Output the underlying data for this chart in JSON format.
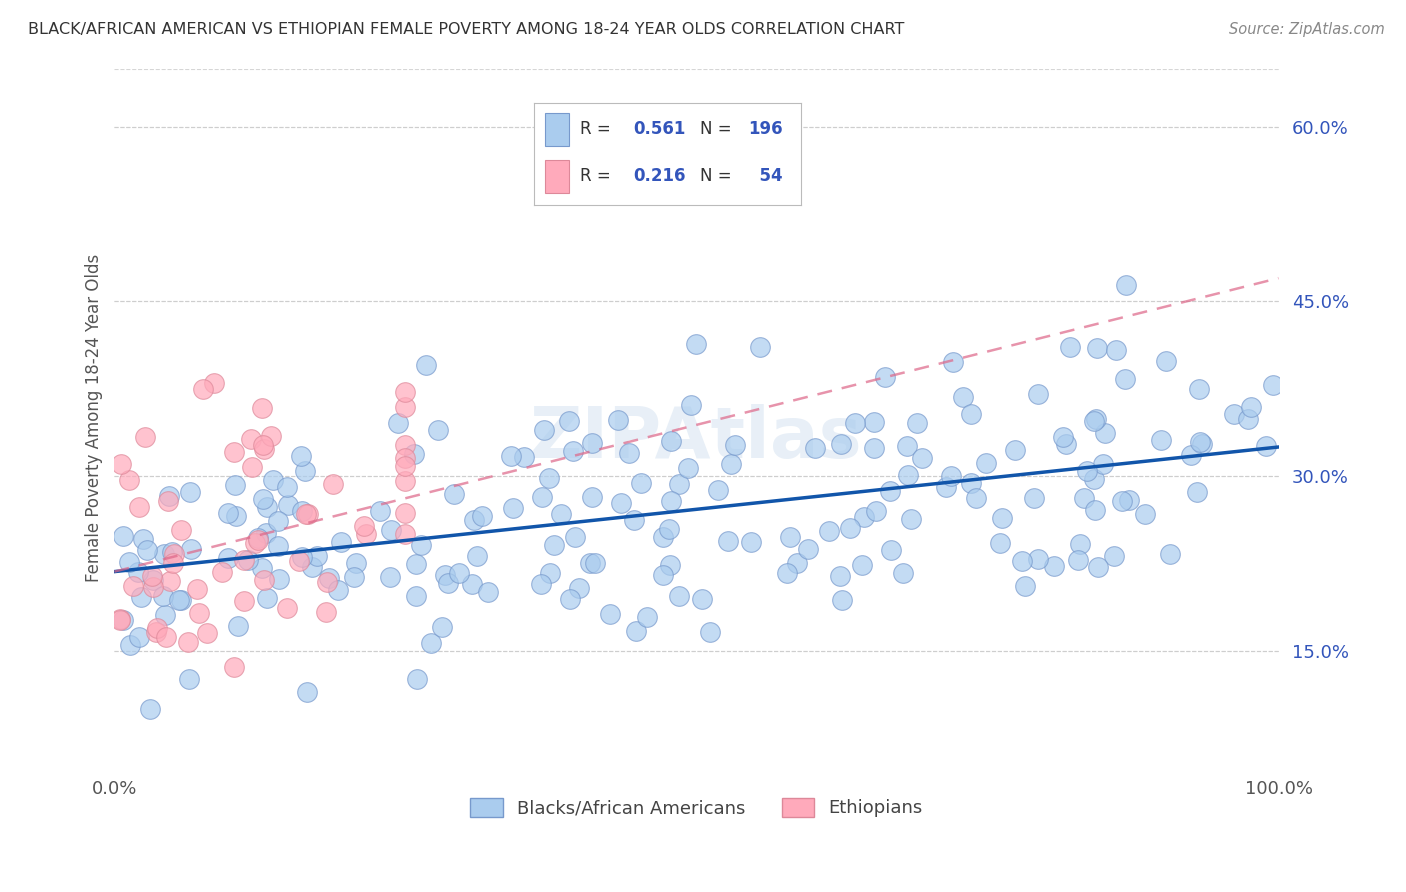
{
  "title": "BLACK/AFRICAN AMERICAN VS ETHIOPIAN FEMALE POVERTY AMONG 18-24 YEAR OLDS CORRELATION CHART",
  "source": "Source: ZipAtlas.com",
  "ylabel": "Female Poverty Among 18-24 Year Olds",
  "xlim": [
    0.0,
    1.0
  ],
  "ylim": [
    0.05,
    0.65
  ],
  "yticks": [
    0.15,
    0.3,
    0.45,
    0.6
  ],
  "ytick_labels": [
    "15.0%",
    "30.0%",
    "45.0%",
    "60.0%"
  ],
  "xtick_labels": [
    "0.0%",
    "",
    "",
    "",
    "100.0%"
  ],
  "blue_color": "#aaccee",
  "blue_edge": "#7799cc",
  "pink_color": "#ffaabb",
  "pink_edge": "#dd8899",
  "blue_line_color": "#1155aa",
  "pink_line_color": "#dd6688",
  "background_color": "#ffffff",
  "grid_color": "#cccccc",
  "title_color": "#333333",
  "ytick_color": "#3355bb",
  "blue_trend_x": [
    0.0,
    1.0
  ],
  "blue_trend_y": [
    0.218,
    0.325
  ],
  "pink_trend_x": [
    0.0,
    1.0
  ],
  "pink_trend_y": [
    0.218,
    0.47
  ]
}
